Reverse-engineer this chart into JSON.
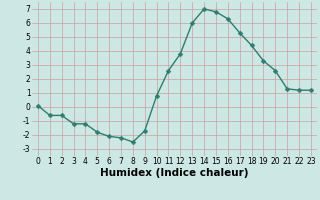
{
  "x": [
    0,
    1,
    2,
    3,
    4,
    5,
    6,
    7,
    8,
    9,
    10,
    11,
    12,
    13,
    14,
    15,
    16,
    17,
    18,
    19,
    20,
    21,
    22,
    23
  ],
  "y": [
    0.1,
    -0.6,
    -0.6,
    -1.2,
    -1.2,
    -1.8,
    -2.1,
    -2.2,
    -2.5,
    -1.7,
    0.8,
    2.6,
    3.8,
    6.0,
    7.0,
    6.8,
    6.3,
    5.3,
    4.4,
    3.3,
    2.6,
    1.3,
    1.2,
    1.2
  ],
  "line_color": "#2e7d6e",
  "marker": "D",
  "marker_size": 2.5,
  "linewidth": 1.0,
  "xlabel": "Humidex (Indice chaleur)",
  "xlim": [
    -0.5,
    23.5
  ],
  "ylim": [
    -3.5,
    7.5
  ],
  "yticks": [
    -3,
    -2,
    -1,
    0,
    1,
    2,
    3,
    4,
    5,
    6,
    7
  ],
  "xticks": [
    0,
    1,
    2,
    3,
    4,
    5,
    6,
    7,
    8,
    9,
    10,
    11,
    12,
    13,
    14,
    15,
    16,
    17,
    18,
    19,
    20,
    21,
    22,
    23
  ],
  "bg_color": "#cde8e4",
  "grid_color": "#c8a0a0",
  "tick_fontsize": 5.5,
  "xlabel_fontsize": 7.5
}
